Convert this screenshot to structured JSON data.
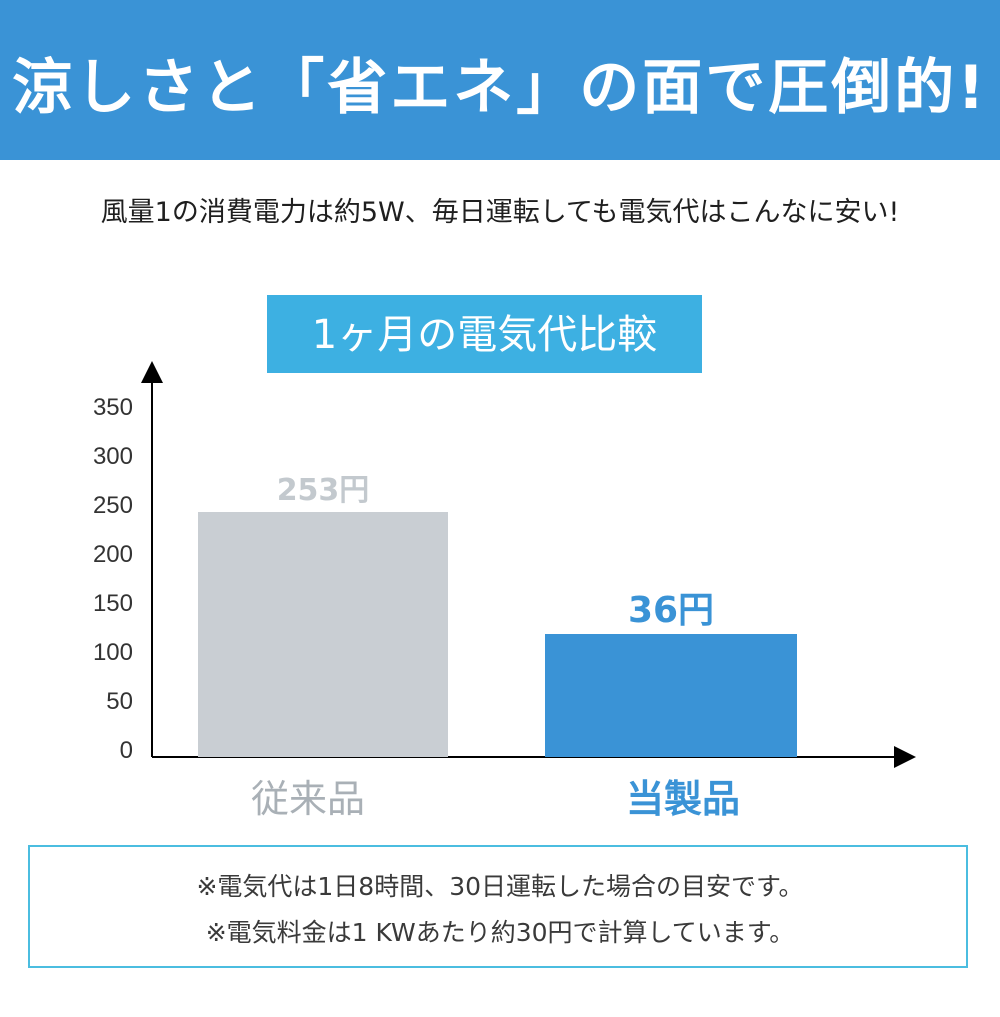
{
  "header": {
    "title": "涼しさと「省エネ」の面で圧倒的!",
    "subtitle": "風量1の消費電力は約5W、毎日運転しても電気代はこんなに安い!"
  },
  "colors": {
    "banner": "#3a93d6",
    "title_box": "#3db0e2",
    "conventional": "#c9ced3",
    "product": "#3a93d6",
    "note_border": "#4bbde0"
  },
  "chart_data": {
    "type": "bar",
    "title": "1ヶ月の電気代比較",
    "categories": [
      "従来品",
      "当製品"
    ],
    "values": [
      253,
      36
    ],
    "value_labels": [
      "253円",
      "36円"
    ],
    "bar_heights_shown": [
      245,
      123
    ],
    "yticks": [
      "0",
      "50",
      "100",
      "150",
      "200",
      "250",
      "300",
      "350"
    ],
    "ylim": [
      0,
      350
    ],
    "grid": false,
    "legend": "none"
  },
  "notes": {
    "line1": "※電気代は1日8時間、30日運転した場合の目安です。",
    "line2": "※電気料金は1 KWあたり約30円で計算しています。"
  }
}
